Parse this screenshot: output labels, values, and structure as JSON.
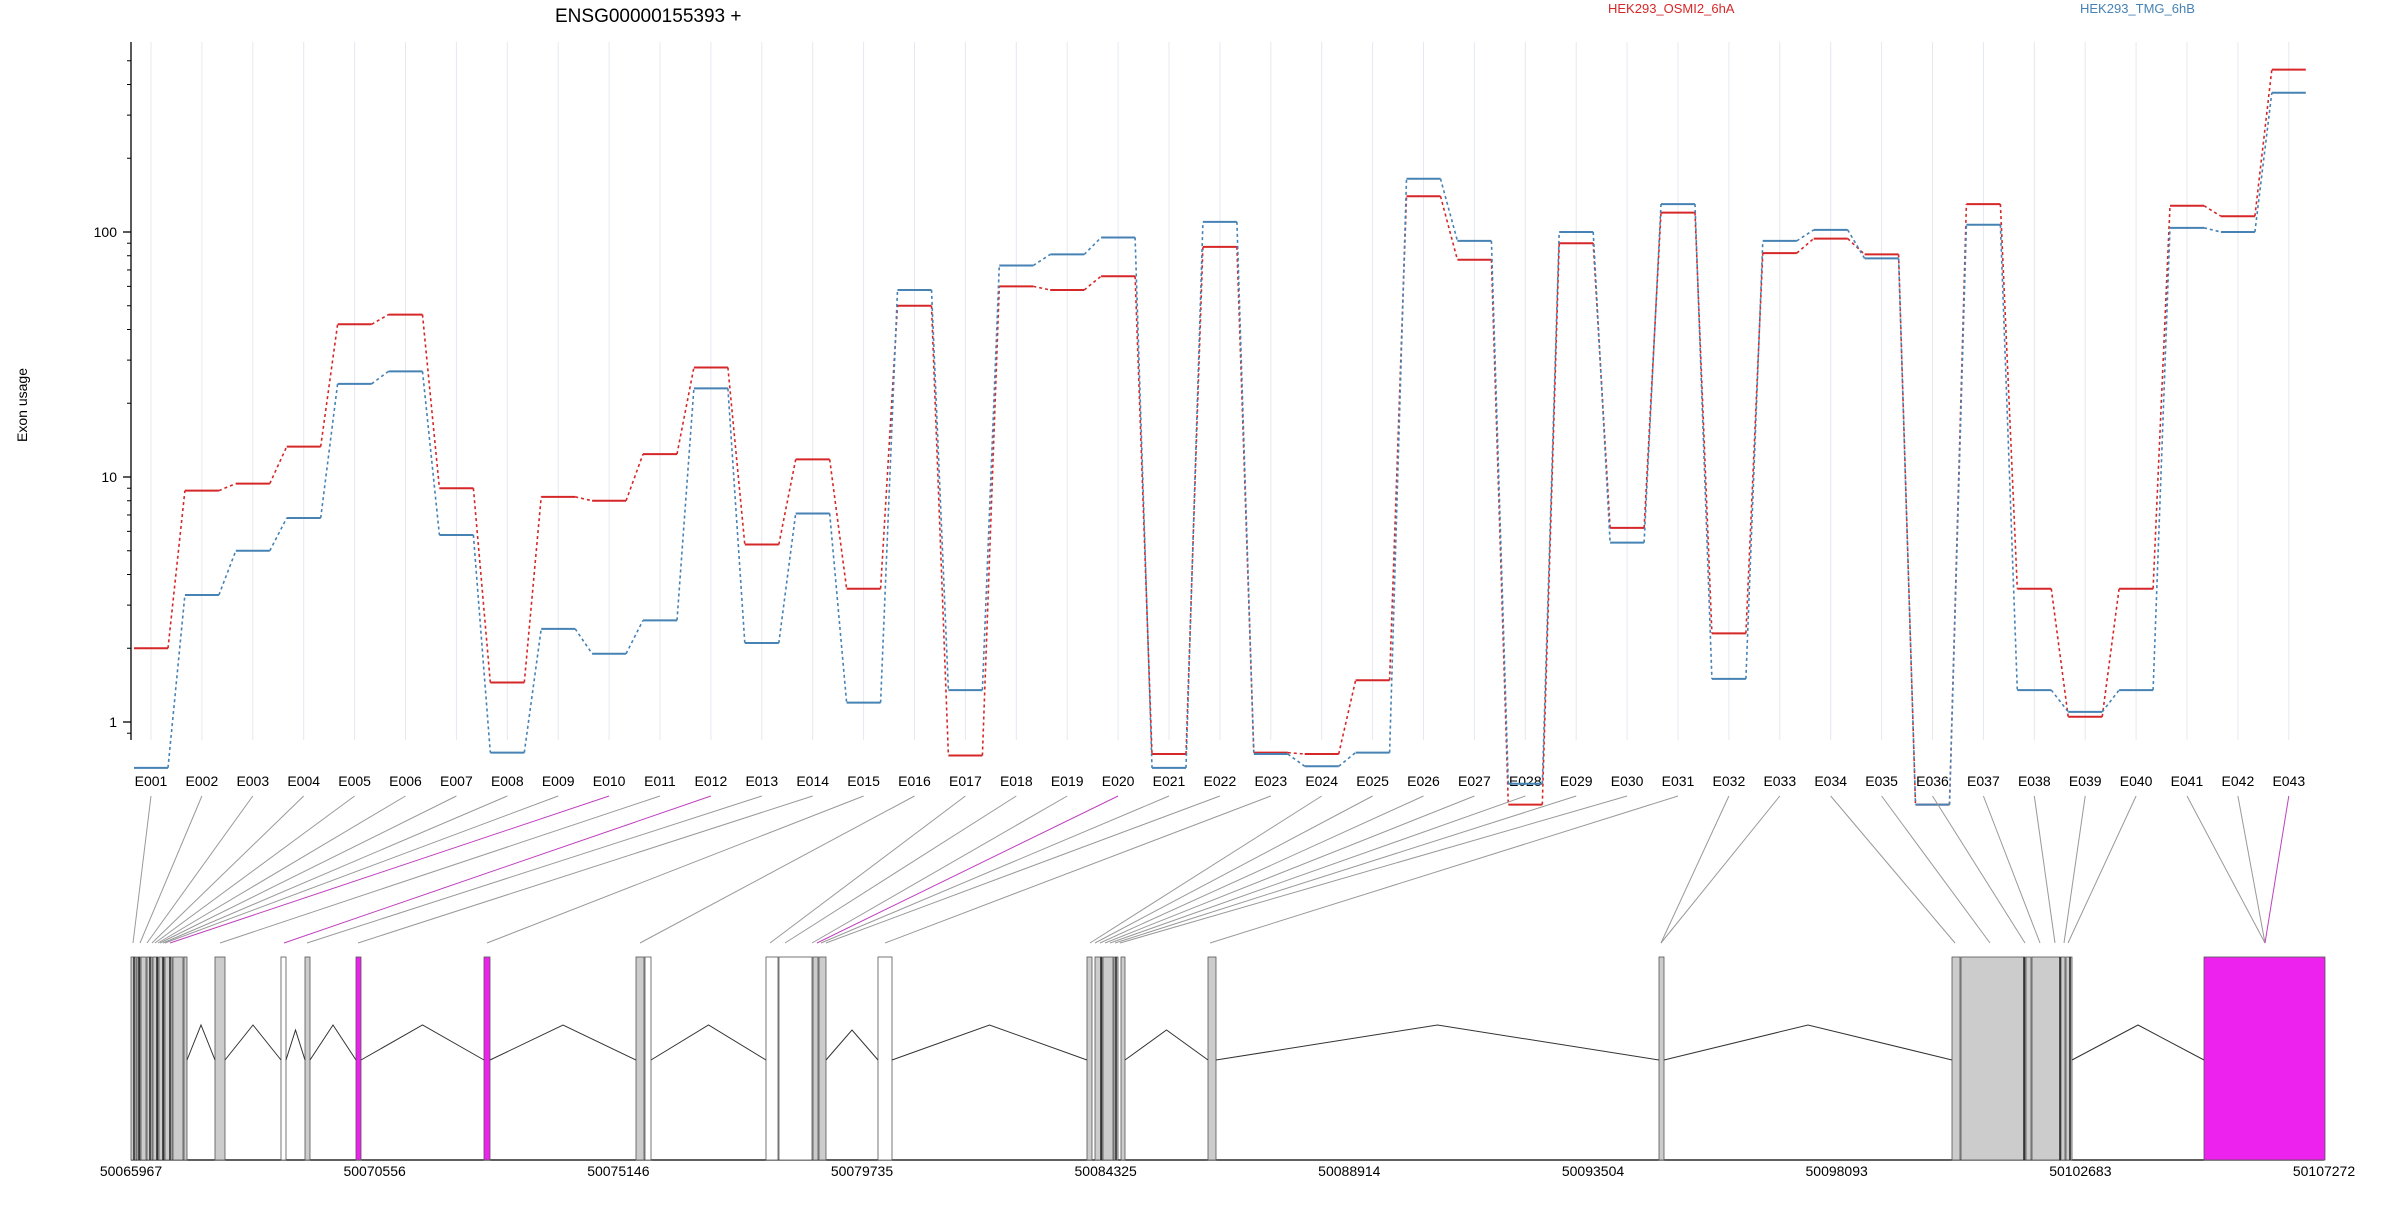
{
  "chart_data": {
    "type": "line",
    "title": "ENSG00000155393 +",
    "ylabel": "Exon usage",
    "yscale": "log",
    "ylim": [
      0.4,
      600
    ],
    "yticks": [
      1,
      10,
      100
    ],
    "ytick_labels": [
      "1",
      "10",
      "100"
    ],
    "categories": [
      "E001",
      "E002",
      "E003",
      "E004",
      "E005",
      "E006",
      "E007",
      "E008",
      "E009",
      "E010",
      "E011",
      "E012",
      "E013",
      "E014",
      "E015",
      "E016",
      "E017",
      "E018",
      "E019",
      "E020",
      "E021",
      "E022",
      "E023",
      "E024",
      "E025",
      "E026",
      "E027",
      "E028",
      "E029",
      "E030",
      "E031",
      "E032",
      "E033",
      "E034",
      "E035",
      "E036",
      "E037",
      "E038",
      "E039",
      "E040",
      "E041",
      "E042",
      "E043"
    ],
    "series": [
      {
        "name": "HEK293_OSMI2_6hA",
        "color": "#d62728",
        "values": [
          2,
          8.8,
          9.4,
          13.3,
          42,
          46,
          9,
          1.45,
          8.3,
          8,
          12.4,
          28,
          5.3,
          11.8,
          3.5,
          50,
          0.73,
          60,
          58,
          66,
          0.74,
          87,
          0.75,
          0.74,
          1.48,
          140,
          77,
          0.46,
          90,
          6.2,
          120,
          2.3,
          82,
          94,
          81,
          0.46,
          130,
          3.5,
          1.05,
          3.5,
          128,
          116,
          460
        ]
      },
      {
        "name": "HEK293_TMG_6hB",
        "color": "#4682b4",
        "values": [
          0.65,
          3.3,
          5,
          6.8,
          24,
          27,
          5.8,
          0.75,
          2.4,
          1.9,
          2.6,
          23,
          2.1,
          7.1,
          1.2,
          58,
          1.35,
          73,
          81,
          95,
          0.65,
          110,
          0.74,
          0.66,
          0.75,
          165,
          92,
          0.56,
          100,
          5.4,
          130,
          1.5,
          92,
          102,
          78,
          0.46,
          107,
          1.35,
          1.1,
          1.35,
          104,
          100,
          370
        ]
      }
    ],
    "genomic_axis": {
      "ticks": [
        50065967,
        50070556,
        50075146,
        50079735,
        50084325,
        50088914,
        50093504,
        50098093,
        50102683,
        50107272
      ],
      "tick_labels": [
        "50065967",
        "50070556",
        "50075146",
        "50079735",
        "50084325",
        "50088914",
        "50093504",
        "50098093",
        "50102683",
        "50107272"
      ]
    },
    "exon_highlight_color": "#ee22ee",
    "exon_fill_color": "#cccccc",
    "gridlines": "vertical",
    "legend": "top-right"
  }
}
